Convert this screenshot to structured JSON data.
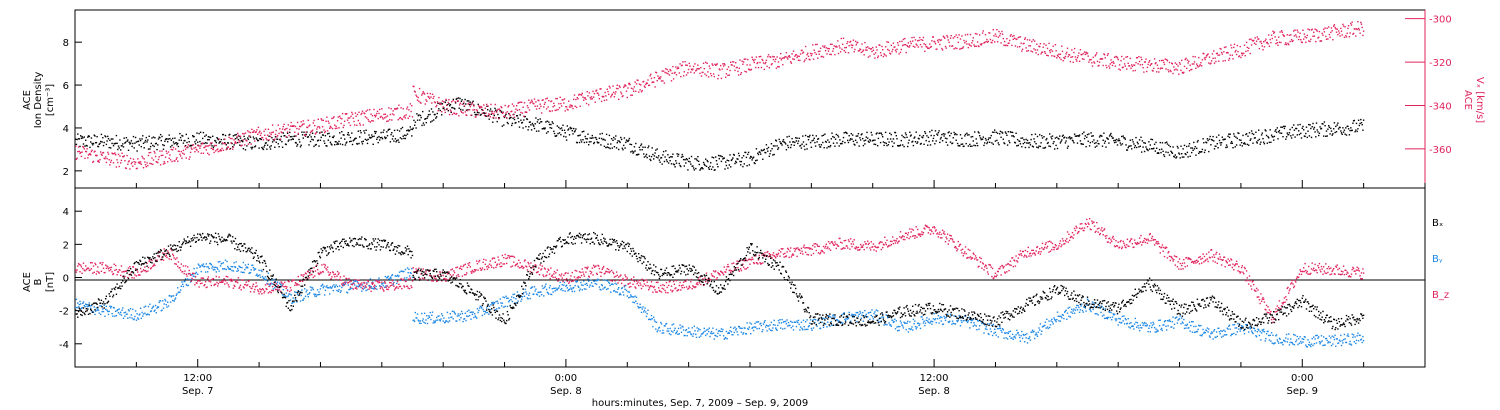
{
  "figure": {
    "xaxis_title": "hours:minutes, Sep.  7, 2009 – Sep.  9, 2009",
    "time_range_hours": [
      -16,
      28
    ],
    "time_ticks": [
      {
        "t": -12,
        "label": "12:00",
        "sublabel": "Sep. 7"
      },
      {
        "t": 0,
        "label": "0:00",
        "sublabel": "Sep. 8"
      },
      {
        "t": 12,
        "label": "12:00",
        "sublabel": "Sep. 8"
      },
      {
        "t": 24,
        "label": "0:00",
        "sublabel": "Sep. 9"
      }
    ]
  },
  "colors": {
    "black": "#000000",
    "red": "#e0245e",
    "blue": "#1e88e5"
  },
  "chart_data": [
    {
      "type": "scatter",
      "panel": "top",
      "ylabel_lines": [
        "ACE",
        "Ion Density"
      ],
      "ylabel_unit": "[cm⁻³]",
      "ylim": [
        1.2,
        9.5
      ],
      "yticks": [
        2,
        4,
        6,
        8
      ],
      "y2label_lines": [
        "ACE",
        "Vₓ [km/s]"
      ],
      "y2lim": [
        -378,
        -296
      ],
      "y2ticks": [
        -300,
        -320,
        -340,
        -360
      ],
      "series": [
        {
          "color": "black",
          "points": [
            [
              -16,
              3.4
            ],
            [
              -15,
              3.4
            ],
            [
              -14,
              3.3
            ],
            [
              -13,
              3.4
            ],
            [
              -12,
              3.5
            ],
            [
              -11,
              3.4
            ],
            [
              -10,
              3.3
            ],
            [
              -9,
              3.5
            ],
            [
              -8,
              3.5
            ],
            [
              -7,
              3.6
            ],
            [
              -6,
              3.6
            ],
            [
              -5,
              3.8
            ],
            [
              -5,
              4.3
            ],
            [
              -4.5,
              4.6
            ],
            [
              -4,
              5.0
            ],
            [
              -3.5,
              5.2
            ],
            [
              -3,
              4.9
            ],
            [
              -2.5,
              4.7
            ],
            [
              -2,
              4.4
            ],
            [
              -1,
              4.2
            ],
            [
              0,
              3.8
            ],
            [
              1,
              3.5
            ],
            [
              2,
              3.3
            ],
            [
              3,
              2.7
            ],
            [
              4,
              2.4
            ],
            [
              5,
              2.4
            ],
            [
              6,
              2.6
            ],
            [
              7,
              3.3
            ],
            [
              8,
              3.4
            ],
            [
              9,
              3.5
            ],
            [
              10,
              3.5
            ],
            [
              11,
              3.5
            ],
            [
              12,
              3.6
            ],
            [
              13,
              3.5
            ],
            [
              14,
              3.6
            ],
            [
              15,
              3.4
            ],
            [
              16,
              3.4
            ],
            [
              17,
              3.5
            ],
            [
              18,
              3.4
            ],
            [
              19,
              3.2
            ],
            [
              20,
              2.9
            ],
            [
              21,
              3.3
            ],
            [
              22,
              3.5
            ],
            [
              23,
              3.7
            ],
            [
              24,
              3.9
            ],
            [
              25,
              4.0
            ],
            [
              26,
              4.1
            ]
          ]
        },
        {
          "color": "red",
          "points": [
            [
              -16,
              -361
            ],
            [
              -15,
              -364
            ],
            [
              -14,
              -366
            ],
            [
              -13,
              -363
            ],
            [
              -12,
              -360
            ],
            [
              -11,
              -357
            ],
            [
              -10,
              -353
            ],
            [
              -9,
              -351
            ],
            [
              -8,
              -349
            ],
            [
              -7,
              -346
            ],
            [
              -6,
              -344
            ],
            [
              -5,
              -342
            ],
            [
              -5,
              -334
            ],
            [
              -4,
              -340
            ],
            [
              -3,
              -342
            ],
            [
              -2,
              -343
            ],
            [
              -1,
              -340
            ],
            [
              0,
              -339
            ],
            [
              1,
              -335
            ],
            [
              2,
              -333
            ],
            [
              3,
              -327
            ],
            [
              4,
              -322
            ],
            [
              5,
              -324
            ],
            [
              6,
              -321
            ],
            [
              7,
              -319
            ],
            [
              8,
              -315
            ],
            [
              9,
              -312
            ],
            [
              10,
              -315
            ],
            [
              11,
              -312
            ],
            [
              12,
              -311
            ],
            [
              13,
              -310
            ],
            [
              14,
              -308
            ],
            [
              15,
              -312
            ],
            [
              16,
              -315
            ],
            [
              17,
              -318
            ],
            [
              18,
              -320
            ],
            [
              19,
              -321
            ],
            [
              20,
              -322
            ],
            [
              21,
              -318
            ],
            [
              22,
              -314
            ],
            [
              23,
              -309
            ],
            [
              24,
              -308
            ],
            [
              25,
              -306
            ],
            [
              26,
              -304
            ]
          ]
        }
      ]
    },
    {
      "type": "scatter",
      "panel": "bottom",
      "ylabel_lines": [
        "ACE",
        "B"
      ],
      "ylabel_unit": "[nT]",
      "ylim": [
        -5.4,
        5.4
      ],
      "yticks": [
        4,
        2,
        0,
        -2,
        -4
      ],
      "legend": [
        "Bₓ",
        "Bᵧ",
        "B_z"
      ],
      "series": [
        {
          "name": "Bₓ",
          "color": "black",
          "points": [
            [
              -16,
              -2.2
            ],
            [
              -15,
              -1.4
            ],
            [
              -14,
              0.8
            ],
            [
              -13,
              1.6
            ],
            [
              -12,
              2.5
            ],
            [
              -11,
              2.3
            ],
            [
              -10,
              1.2
            ],
            [
              -9,
              -1.8
            ],
            [
              -8,
              1.6
            ],
            [
              -7,
              2.2
            ],
            [
              -6,
              2.0
            ],
            [
              -5,
              1.5
            ],
            [
              -5,
              0.2
            ],
            [
              -4,
              0.2
            ],
            [
              -3,
              -0.9
            ],
            [
              -2,
              -2.6
            ],
            [
              -1,
              1.0
            ],
            [
              0,
              2.4
            ],
            [
              1,
              2.4
            ],
            [
              2,
              1.8
            ],
            [
              3,
              0.2
            ],
            [
              4,
              0.6
            ],
            [
              5,
              -0.8
            ],
            [
              6,
              1.8
            ],
            [
              7,
              0.6
            ],
            [
              8,
              -2.5
            ],
            [
              9,
              -2.5
            ],
            [
              10,
              -2.6
            ],
            [
              11,
              -2.0
            ],
            [
              12,
              -1.8
            ],
            [
              13,
              -2.2
            ],
            [
              14,
              -2.6
            ],
            [
              15,
              -1.6
            ],
            [
              16,
              -0.7
            ],
            [
              17,
              -1.5
            ],
            [
              18,
              -1.8
            ],
            [
              19,
              -0.3
            ],
            [
              20,
              -2.0
            ],
            [
              21,
              -1.3
            ],
            [
              22,
              -2.8
            ],
            [
              23,
              -2.4
            ],
            [
              24,
              -1.4
            ],
            [
              25,
              -2.8
            ],
            [
              26,
              -2.3
            ]
          ]
        },
        {
          "name": "Bᵧ",
          "color": "blue",
          "points": [
            [
              -16,
              -1.6
            ],
            [
              -15,
              -2.0
            ],
            [
              -14,
              -2.2
            ],
            [
              -13,
              -1.5
            ],
            [
              -12,
              0.6
            ],
            [
              -11,
              0.8
            ],
            [
              -10,
              0.4
            ],
            [
              -9,
              -1.2
            ],
            [
              -8,
              -0.7
            ],
            [
              -7,
              -0.5
            ],
            [
              -6,
              -0.3
            ],
            [
              -5,
              0.4
            ],
            [
              -5,
              -2.4
            ],
            [
              -4,
              -2.4
            ],
            [
              -3,
              -2.2
            ],
            [
              -2,
              -1.4
            ],
            [
              -1,
              -0.8
            ],
            [
              0,
              -0.5
            ],
            [
              1,
              -0.3
            ],
            [
              2,
              -0.8
            ],
            [
              3,
              -3.0
            ],
            [
              4,
              -3.2
            ],
            [
              5,
              -3.4
            ],
            [
              6,
              -3.0
            ],
            [
              7,
              -2.8
            ],
            [
              8,
              -2.8
            ],
            [
              9,
              -2.4
            ],
            [
              10,
              -2.2
            ],
            [
              11,
              -3.0
            ],
            [
              12,
              -2.4
            ],
            [
              13,
              -2.6
            ],
            [
              14,
              -3.2
            ],
            [
              15,
              -3.6
            ],
            [
              16,
              -2.4
            ],
            [
              17,
              -1.6
            ],
            [
              18,
              -2.5
            ],
            [
              19,
              -3.0
            ],
            [
              20,
              -2.6
            ],
            [
              21,
              -3.4
            ],
            [
              22,
              -3.0
            ],
            [
              23,
              -3.6
            ],
            [
              24,
              -3.8
            ],
            [
              25,
              -3.8
            ],
            [
              26,
              -3.6
            ]
          ]
        },
        {
          "name": "B_z",
          "color": "red",
          "points": [
            [
              -16,
              0.6
            ],
            [
              -15,
              0.6
            ],
            [
              -14,
              0.3
            ],
            [
              -13,
              1.6
            ],
            [
              -12,
              -0.3
            ],
            [
              -11,
              -0.2
            ],
            [
              -10,
              -0.6
            ],
            [
              -9,
              -0.5
            ],
            [
              -8,
              0.6
            ],
            [
              -7,
              -0.4
            ],
            [
              -6,
              -0.5
            ],
            [
              -5,
              -0.3
            ],
            [
              -5,
              0.3
            ],
            [
              -4,
              0.1
            ],
            [
              -3,
              0.7
            ],
            [
              -2,
              1.1
            ],
            [
              -1,
              0.6
            ],
            [
              0,
              0.0
            ],
            [
              1,
              0.5
            ],
            [
              2,
              -0.2
            ],
            [
              3,
              -0.6
            ],
            [
              4,
              -0.4
            ],
            [
              5,
              0.3
            ],
            [
              6,
              1.0
            ],
            [
              7,
              1.5
            ],
            [
              8,
              1.7
            ],
            [
              9,
              2.1
            ],
            [
              10,
              1.9
            ],
            [
              11,
              2.6
            ],
            [
              12,
              3.0
            ],
            [
              13,
              1.6
            ],
            [
              14,
              0.2
            ],
            [
              15,
              1.6
            ],
            [
              16,
              2.0
            ],
            [
              17,
              3.4
            ],
            [
              18,
              2.0
            ],
            [
              19,
              2.4
            ],
            [
              20,
              0.8
            ],
            [
              21,
              1.4
            ],
            [
              22,
              0.6
            ],
            [
              23,
              -2.4
            ],
            [
              24,
              0.6
            ],
            [
              25,
              0.5
            ],
            [
              26,
              0.3
            ]
          ]
        }
      ]
    }
  ]
}
